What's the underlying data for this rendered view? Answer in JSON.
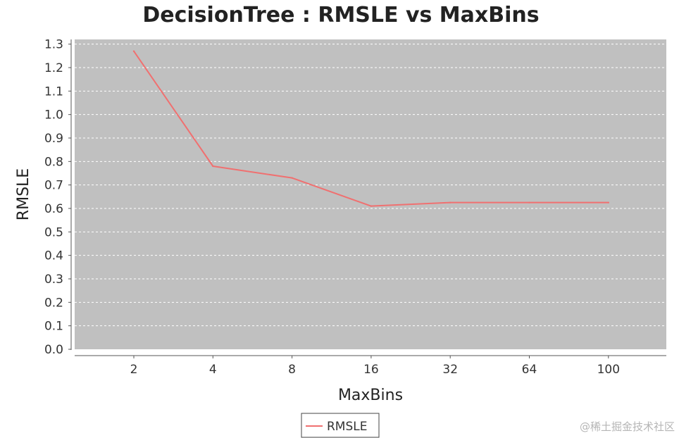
{
  "chart_data": {
    "type": "line",
    "title": "DecisionTree : RMSLE vs MaxBins",
    "xlabel": "MaxBins",
    "ylabel": "RMSLE",
    "categories": [
      "2",
      "4",
      "8",
      "16",
      "32",
      "64",
      "100"
    ],
    "series": [
      {
        "name": "RMSLE",
        "values": [
          1.27,
          0.78,
          0.73,
          0.61,
          0.625,
          0.625,
          0.625
        ]
      }
    ],
    "yticks": [
      "0.0",
      "0.1",
      "0.2",
      "0.3",
      "0.4",
      "0.5",
      "0.6",
      "0.7",
      "0.8",
      "0.9",
      "1.0",
      "1.1",
      "1.2",
      "1.3"
    ],
    "ylim": [
      0,
      1.32
    ],
    "grid": true,
    "legend_position": "bottom-center",
    "colors": {
      "plot_background": "#c0c0c0",
      "series_line": "#f07070",
      "gridline": "#ffffff"
    }
  },
  "watermark": "@稀土掘金技术社区"
}
